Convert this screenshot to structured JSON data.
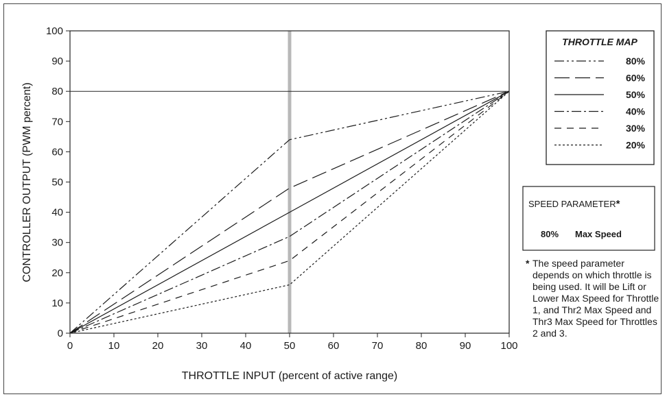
{
  "chart_data": {
    "type": "line",
    "xlabel": "THROTTLE INPUT  (percent of active range)",
    "ylabel": "CONTROLLER OUTPUT  (PWM percent)",
    "xlim": [
      0,
      100
    ],
    "ylim": [
      0,
      100
    ],
    "x_ticks": [
      "0",
      "10",
      "20",
      "30",
      "40",
      "50",
      "60",
      "70",
      "80",
      "90",
      "100"
    ],
    "y_ticks": [
      "0",
      "10",
      "20",
      "30",
      "40",
      "50",
      "60",
      "70",
      "80",
      "90",
      "100"
    ],
    "x": [
      0,
      50,
      100
    ],
    "series": [
      {
        "name": "80%",
        "values": [
          0,
          64,
          80
        ],
        "dash": "14 4 3 4 3 4"
      },
      {
        "name": "60%",
        "values": [
          0,
          48,
          80
        ],
        "dash": "22 8"
      },
      {
        "name": "50%",
        "values": [
          0,
          40,
          80
        ],
        "dash": ""
      },
      {
        "name": "40%",
        "values": [
          0,
          32,
          80
        ],
        "dash": "14 4 3 4"
      },
      {
        "name": "30%",
        "values": [
          0,
          24,
          80
        ],
        "dash": "10 8"
      },
      {
        "name": "20%",
        "values": [
          0,
          16,
          80
        ],
        "dash": "3 3"
      }
    ],
    "reference_hline": 80,
    "reference_vline": 50,
    "legend_title": "THROTTLE MAP",
    "legend_position": "right"
  },
  "speed_box": {
    "title": "SPEED PARAMETER",
    "asterisk": "*",
    "value": "80%",
    "label": "Max Speed"
  },
  "footnote": {
    "marker": "*",
    "text": "The speed parameter depends on which throttle is being used. It will be Lift or Lower Max Speed for Throttle 1, and Thr2 Max Speed and Thr3 Max Speed for Throttles 2 and 3."
  }
}
